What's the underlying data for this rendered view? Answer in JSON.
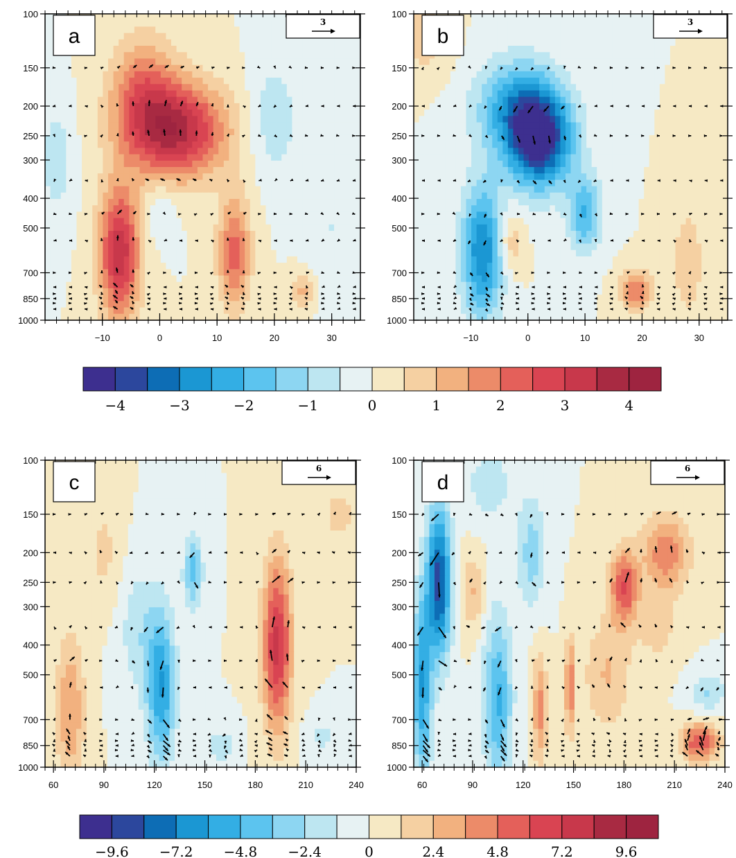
{
  "colors": {
    "cb_a": [
      "#3d2f8f",
      "#2c479d",
      "#0d6db5",
      "#1b97d3",
      "#33aee4",
      "#5cc4ef",
      "#8dd6f2",
      "#bde6f1",
      "#e7f2f3",
      "#f6e9c4",
      "#f5d0a2",
      "#f2b17f",
      "#ec8b69",
      "#e4605a",
      "#d94452",
      "#c8384b",
      "#a82a42",
      "#9e2440"
    ],
    "cb_c": [
      "#3d2f8f",
      "#2c479d",
      "#0d6db5",
      "#1b97d3",
      "#33aee4",
      "#5cc4ef",
      "#8dd6f2",
      "#bde6f1",
      "#e7f2f3",
      "#f6e9c4",
      "#f5d0a2",
      "#f2b17f",
      "#ec8b69",
      "#e4605a",
      "#d94452",
      "#c8384b",
      "#a82a42",
      "#9e2440"
    ]
  },
  "colorbars": [
    {
      "name": "colorbar-top",
      "labels": [
        "−4",
        "−3",
        "−2",
        "−1",
        "0",
        "1",
        "2",
        "3",
        "4"
      ]
    },
    {
      "name": "colorbar-bottom",
      "labels": [
        "−9.6",
        "−7.2",
        "−4.8",
        "−2.4",
        "0",
        "2.4",
        "4.8",
        "7.2",
        "9.6"
      ]
    }
  ],
  "chart_data": [
    {
      "type": "heatmap",
      "panel": "a",
      "x_ticks": [
        "−10",
        "0",
        "10",
        "20",
        "30"
      ],
      "x_tick_values": [
        -10,
        0,
        10,
        20,
        30
      ],
      "xlim": [
        -20,
        35
      ],
      "y_ticks": [
        "100",
        "150",
        "200",
        "250",
        "300",
        "400",
        "500",
        "700",
        "850",
        "1000"
      ],
      "y_tick_values": [
        100,
        150,
        200,
        250,
        300,
        400,
        500,
        700,
        850,
        1000
      ],
      "ylim": [
        100,
        1000
      ],
      "y_scale": "log",
      "reference_vector": "3",
      "blobs": [
        {
          "x": -7,
          "p": 600,
          "value": 3.4,
          "sx": 2.5,
          "sy": 0.35
        },
        {
          "x": 3,
          "p": 240,
          "value": 3.6,
          "sx": 6,
          "sy": 0.25
        },
        {
          "x": 13,
          "p": 600,
          "value": 2.2,
          "sx": 2,
          "sy": 0.3
        },
        {
          "x": -3,
          "p": 180,
          "value": 1.8,
          "sx": 4,
          "sy": 0.3
        },
        {
          "x": 25,
          "p": 800,
          "value": 1.2,
          "sx": 1.5,
          "sy": 0.1
        },
        {
          "x": -18,
          "p": 300,
          "value": -0.8,
          "sx": 2,
          "sy": 0.3
        },
        {
          "x": 20,
          "p": 220,
          "value": -0.9,
          "sx": 3,
          "sy": 0.3
        },
        {
          "x": 0,
          "p": 450,
          "value": -0.6,
          "sx": 2,
          "sy": 0.15
        },
        {
          "x": 30,
          "p": 500,
          "value": -0.5,
          "sx": 3,
          "sy": 0.4
        }
      ]
    },
    {
      "type": "heatmap",
      "panel": "b",
      "x_ticks": [
        "−10",
        "0",
        "10",
        "20",
        "30"
      ],
      "x_tick_values": [
        -10,
        0,
        10,
        20,
        30
      ],
      "xlim": [
        -20,
        35
      ],
      "y_ticks": [
        "100",
        "150",
        "200",
        "250",
        "300",
        "400",
        "500",
        "700",
        "850",
        "1000"
      ],
      "y_tick_values": [
        100,
        150,
        200,
        250,
        300,
        400,
        500,
        700,
        850,
        1000
      ],
      "ylim": [
        100,
        1000
      ],
      "y_scale": "log",
      "reference_vector": "3",
      "blobs": [
        {
          "x": 2,
          "p": 260,
          "value": -4.2,
          "sx": 4,
          "sy": 0.25
        },
        {
          "x": -8,
          "p": 600,
          "value": -3.0,
          "sx": 2.5,
          "sy": 0.35
        },
        {
          "x": -2,
          "p": 200,
          "value": -2.2,
          "sx": 5,
          "sy": 0.25
        },
        {
          "x": 10,
          "p": 450,
          "value": -2.0,
          "sx": 2,
          "sy": 0.2
        },
        {
          "x": 19,
          "p": 800,
          "value": 2.0,
          "sx": 2,
          "sy": 0.1
        },
        {
          "x": -3,
          "p": 560,
          "value": 1.0,
          "sx": 1.5,
          "sy": 0.15
        },
        {
          "x": 28,
          "p": 650,
          "value": 0.9,
          "sx": 2,
          "sy": 0.3
        },
        {
          "x": -18,
          "p": 120,
          "value": 0.8,
          "sx": 3,
          "sy": 0.2
        }
      ]
    },
    {
      "type": "heatmap",
      "panel": "c",
      "x_ticks": [
        "60",
        "90",
        "120",
        "150",
        "180",
        "210",
        "240"
      ],
      "x_tick_values": [
        60,
        90,
        120,
        150,
        180,
        210,
        240
      ],
      "xlim": [
        55,
        240
      ],
      "y_ticks": [
        "100",
        "150",
        "200",
        "250",
        "300",
        "400",
        "500",
        "700",
        "850",
        "1000"
      ],
      "y_tick_values": [
        100,
        150,
        200,
        250,
        300,
        400,
        500,
        700,
        850,
        1000
      ],
      "ylim": [
        100,
        1000
      ],
      "y_scale": "log",
      "reference_vector": "6",
      "blobs": [
        {
          "x": 193,
          "p": 400,
          "value": 7.6,
          "sx": 6,
          "sy": 0.45
        },
        {
          "x": 124,
          "p": 550,
          "value": -6.0,
          "sx": 6,
          "sy": 0.4
        },
        {
          "x": 143,
          "p": 230,
          "value": -4.0,
          "sx": 4,
          "sy": 0.2
        },
        {
          "x": 70,
          "p": 650,
          "value": 3.6,
          "sx": 6,
          "sy": 0.4
        },
        {
          "x": 110,
          "p": 350,
          "value": -2.0,
          "sx": 8,
          "sy": 0.35
        },
        {
          "x": 160,
          "p": 850,
          "value": -2.0,
          "sx": 6,
          "sy": 0.1
        },
        {
          "x": 220,
          "p": 800,
          "value": -1.5,
          "sx": 8,
          "sy": 0.1
        },
        {
          "x": 90,
          "p": 200,
          "value": 1.5,
          "sx": 8,
          "sy": 0.3
        },
        {
          "x": 230,
          "p": 150,
          "value": 1.5,
          "sx": 10,
          "sy": 0.2
        }
      ]
    },
    {
      "type": "heatmap",
      "panel": "d",
      "x_ticks": [
        "60",
        "90",
        "120",
        "150",
        "180",
        "210",
        "240"
      ],
      "x_tick_values": [
        60,
        90,
        120,
        150,
        180,
        210,
        240
      ],
      "xlim": [
        55,
        240
      ],
      "y_ticks": [
        "100",
        "150",
        "200",
        "250",
        "300",
        "400",
        "500",
        "700",
        "850",
        "1000"
      ],
      "y_tick_values": [
        100,
        150,
        200,
        250,
        300,
        400,
        500,
        700,
        850,
        1000
      ],
      "ylim": [
        100,
        1000
      ],
      "y_scale": "log",
      "reference_vector": "6",
      "blobs": [
        {
          "x": 70,
          "p": 250,
          "value": -9.0,
          "sx": 5,
          "sy": 0.4
        },
        {
          "x": 60,
          "p": 550,
          "value": -6.0,
          "sx": 4,
          "sy": 0.5
        },
        {
          "x": 105,
          "p": 600,
          "value": -5.0,
          "sx": 6,
          "sy": 0.45
        },
        {
          "x": 180,
          "p": 260,
          "value": 6.0,
          "sx": 6,
          "sy": 0.2
        },
        {
          "x": 205,
          "p": 200,
          "value": 4.5,
          "sx": 10,
          "sy": 0.2
        },
        {
          "x": 225,
          "p": 830,
          "value": 6.0,
          "sx": 8,
          "sy": 0.1
        },
        {
          "x": 130,
          "p": 650,
          "value": 4.0,
          "sx": 3,
          "sy": 0.3
        },
        {
          "x": 148,
          "p": 550,
          "value": 5.0,
          "sx": 2,
          "sy": 0.25
        },
        {
          "x": 90,
          "p": 270,
          "value": 2.5,
          "sx": 5,
          "sy": 0.2
        },
        {
          "x": 125,
          "p": 200,
          "value": -3.0,
          "sx": 6,
          "sy": 0.3
        },
        {
          "x": 170,
          "p": 500,
          "value": 2.5,
          "sx": 10,
          "sy": 0.3
        },
        {
          "x": 230,
          "p": 570,
          "value": -2.5,
          "sx": 8,
          "sy": 0.1
        },
        {
          "x": 100,
          "p": 120,
          "value": -2.0,
          "sx": 10,
          "sy": 0.2
        },
        {
          "x": 200,
          "p": 350,
          "value": 1.8,
          "sx": 8,
          "sy": 0.2
        }
      ]
    }
  ]
}
